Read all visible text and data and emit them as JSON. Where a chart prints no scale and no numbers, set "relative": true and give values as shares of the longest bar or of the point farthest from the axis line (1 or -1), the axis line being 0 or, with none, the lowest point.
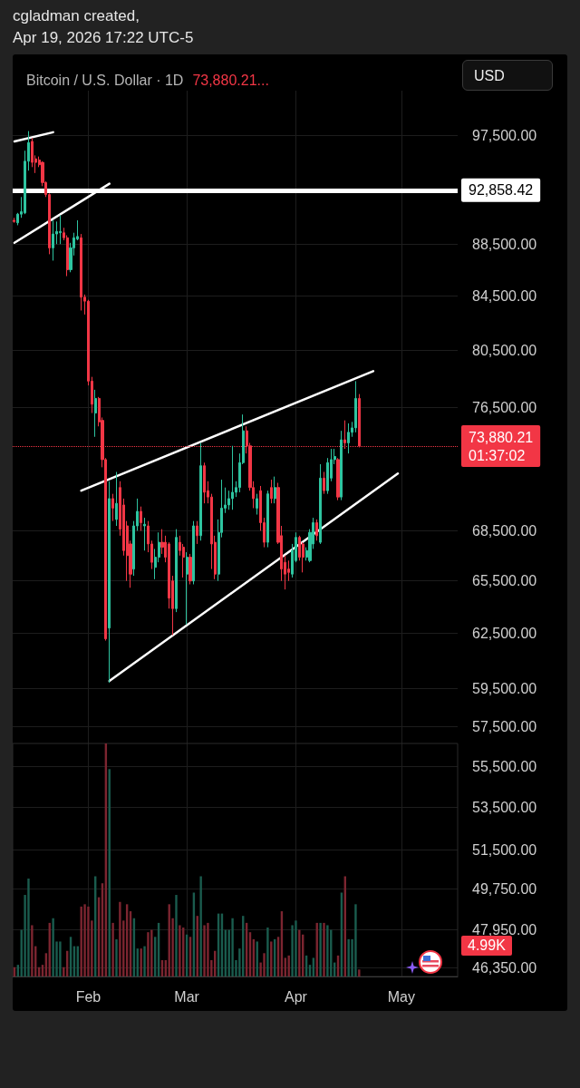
{
  "chart_data": [
    {
      "type": "candlestick",
      "title": "Bitcoin / U.S. Dollar · 1D",
      "subtitle": "73,880.21...",
      "annotations": [
        "cgladman created,",
        "Apr 19, 2026 17:22 UTC-5",
        "USD"
      ],
      "log": true,
      "grid": true,
      "marker": "none",
      "line_style": "solid",
      "tick_labels": "y",
      "ylim": [
        46000,
        101500
      ],
      "yticks": [
        {
          "value": 97500,
          "label": "97,500.00"
        },
        {
          "value": 88500,
          "label": "88,500.00"
        },
        {
          "value": 84500,
          "label": "84,500.00"
        },
        {
          "value": 80500,
          "label": "80,500.00"
        },
        {
          "value": 76500,
          "label": "76,500.00"
        },
        {
          "value": 68500,
          "label": "68,500.00"
        },
        {
          "value": 65500,
          "label": "65,500.00"
        },
        {
          "value": 62500,
          "label": "62,500.00"
        },
        {
          "value": 59500,
          "label": "59,500.00"
        },
        {
          "value": 57500,
          "label": "57,500.00"
        },
        {
          "value": 55500,
          "label": "55,500.00"
        },
        {
          "value": 53500,
          "label": "53,500.00"
        },
        {
          "value": 51500,
          "label": "51,500.00"
        },
        {
          "value": 49750,
          "label": "49,750.00"
        },
        {
          "value": 47950,
          "label": "47,950.00"
        },
        {
          "value": 46350,
          "label": "46,350.00"
        }
      ],
      "xlim": [
        "2026-01-10T12:00",
        "2026-05-17"
      ],
      "xticks": [
        {
          "value": "2026-02-01",
          "label": null
        },
        {
          "value": "2026-03-01",
          "label": null
        },
        {
          "value": "2026-04-01",
          "label": null
        },
        {
          "value": "2026-05-01",
          "label": null
        }
      ],
      "ref_lines": [
        {
          "axis": "y",
          "value": 92858.42,
          "label": "92,858.42",
          "color": "#ffffff",
          "line_style": "solid"
        },
        {
          "axis": "y",
          "value": 73880.21,
          "label": "73,880.21\n01:37:02",
          "color": "#f23645",
          "line_style": "dotted"
        }
      ],
      "x": [
        "2026-01-11",
        "2026-01-12",
        "2026-01-13",
        "2026-01-14",
        "2026-01-15",
        "2026-01-16",
        "2026-01-17",
        "2026-01-18",
        "2026-01-19",
        "2026-01-20",
        "2026-01-21",
        "2026-01-22",
        "2026-01-23",
        "2026-01-24",
        "2026-01-25",
        "2026-01-26",
        "2026-01-27",
        "2026-01-28",
        "2026-01-29",
        "2026-01-30",
        "2026-01-31",
        "2026-02-01",
        "2026-02-02",
        "2026-02-03",
        "2026-02-04",
        "2026-02-05",
        "2026-02-06",
        "2026-02-07",
        "2026-02-08",
        "2026-02-09",
        "2026-02-10",
        "2026-02-11",
        "2026-02-12",
        "2026-02-13",
        "2026-02-14",
        "2026-02-15",
        "2026-02-16",
        "2026-02-17",
        "2026-02-18",
        "2026-02-19",
        "2026-02-20",
        "2026-02-21",
        "2026-02-22",
        "2026-02-23",
        "2026-02-24",
        "2026-02-25",
        "2026-02-26",
        "2026-02-27",
        "2026-02-28",
        "2026-03-01",
        "2026-03-02",
        "2026-03-03",
        "2026-03-04",
        "2026-03-05",
        "2026-03-06",
        "2026-03-07",
        "2026-03-08",
        "2026-03-09",
        "2026-03-10",
        "2026-03-11",
        "2026-03-12",
        "2026-03-13",
        "2026-03-14",
        "2026-03-15",
        "2026-03-16",
        "2026-03-17",
        "2026-03-18",
        "2026-03-19",
        "2026-03-20",
        "2026-03-21",
        "2026-03-22",
        "2026-03-23",
        "2026-03-24",
        "2026-03-25",
        "2026-03-26",
        "2026-03-27",
        "2026-03-28",
        "2026-03-29",
        "2026-03-30",
        "2026-03-31",
        "2026-04-01",
        "2026-04-02",
        "2026-04-03",
        "2026-04-04",
        "2026-04-05",
        "2026-04-06",
        "2026-04-07",
        "2026-04-08",
        "2026-04-09",
        "2026-04-10",
        "2026-04-11",
        "2026-04-12",
        "2026-04-13",
        "2026-04-14",
        "2026-04-15",
        "2026-04-16",
        "2026-04-17",
        "2026-04-18",
        "2026-04-19"
      ],
      "series": [
        {
          "type": "candlestick",
          "ohlc": [
            [
              90400,
              90600,
              90200,
              90300
            ],
            [
              90200,
              91000,
              90000,
              90900
            ],
            [
              90900,
              92300,
              90600,
              91100
            ],
            [
              91000,
              96200,
              90900,
              95300
            ],
            [
              95300,
              97900,
              94500,
              96900
            ],
            [
              97000,
              97300,
              94800,
              95200
            ],
            [
              95500,
              95800,
              94300,
              95200
            ],
            [
              95400,
              95700,
              94800,
              95000
            ],
            [
              95200,
              95300,
              93200,
              93500
            ],
            [
              93500,
              93600,
              92300,
              92500
            ],
            [
              92500,
              92600,
              87700,
              88200
            ],
            [
              88200,
              90400,
              87200,
              89300
            ],
            [
              89300,
              90300,
              88500,
              89500
            ],
            [
              89400,
              90800,
              88500,
              89500
            ],
            [
              89400,
              89800,
              88800,
              89000
            ],
            [
              89000,
              89200,
              86000,
              86500
            ],
            [
              86500,
              88600,
              86300,
              88200
            ],
            [
              88200,
              89400,
              87600,
              89000
            ],
            [
              88900,
              90400,
              88800,
              89100
            ],
            [
              89000,
              89300,
              83400,
              84400
            ],
            [
              84400,
              84600,
              83100,
              84100
            ],
            [
              84100,
              84200,
              78000,
              78300
            ],
            [
              78300,
              78600,
              76100,
              76700
            ],
            [
              76100,
              77700,
              74500,
              77100
            ],
            [
              77100,
              77200,
              75200,
              75500
            ],
            [
              75600,
              75800,
              72500,
              73000
            ],
            [
              73000,
              73100,
              62100,
              62200
            ],
            [
              62800,
              71600,
              59800,
              70500
            ],
            [
              70500,
              70800,
              69100,
              69900
            ],
            [
              69200,
              72200,
              68800,
              70200
            ],
            [
              71200,
              71600,
              68200,
              68600
            ],
            [
              70100,
              70500,
              67000,
              67300
            ],
            [
              68800,
              69100,
              65500,
              67000
            ],
            [
              67700,
              67900,
              65100,
              65900
            ],
            [
              66200,
              69100,
              65800,
              68800
            ],
            [
              68800,
              70500,
              68500,
              69700
            ],
            [
              69700,
              70000,
              68500,
              69000
            ],
            [
              68800,
              69300,
              67300,
              68900
            ],
            [
              68800,
              69100,
              67200,
              67700
            ],
            [
              67700,
              67900,
              66200,
              66600
            ],
            [
              66300,
              67400,
              65600,
              66900
            ],
            [
              66900,
              68400,
              66600,
              67800
            ],
            [
              67800,
              68600,
              67100,
              67500
            ],
            [
              67800,
              68200,
              66600,
              66900
            ],
            [
              67700,
              67800,
              63900,
              64500
            ],
            [
              65500,
              65800,
              62400,
              63900
            ],
            [
              63900,
              68600,
              63700,
              68100
            ],
            [
              67800,
              68200,
              67000,
              67300
            ],
            [
              67500,
              67700,
              65700,
              66900
            ],
            [
              65900,
              67200,
              63000,
              66900
            ],
            [
              66900,
              67100,
              65300,
              65500
            ],
            [
              65500,
              69100,
              65300,
              68800
            ],
            [
              68800,
              69100,
              67700,
              68200
            ],
            [
              68200,
              74100,
              67900,
              72600
            ],
            [
              72600,
              72800,
              70200,
              70900
            ],
            [
              71000,
              71600,
              70200,
              70600
            ],
            [
              70600,
              70800,
              66200,
              67700
            ],
            [
              67800,
              68200,
              65600,
              65900
            ],
            [
              65900,
              69200,
              65500,
              68400
            ],
            [
              68400,
              71700,
              68100,
              69900
            ],
            [
              69900,
              71200,
              69600,
              70100
            ],
            [
              70100,
              71000,
              69800,
              70500
            ],
            [
              70500,
              73900,
              69800,
              70900
            ],
            [
              70900,
              71600,
              70600,
              71200
            ],
            [
              71200,
              73400,
              70900,
              72800
            ],
            [
              72800,
              76000,
              72700,
              74900
            ],
            [
              74900,
              75200,
              73400,
              73900
            ],
            [
              73900,
              74100,
              71000,
              71200
            ],
            [
              71200,
              71600,
              69900,
              70500
            ],
            [
              69900,
              70800,
              69500,
              70500
            ],
            [
              71000,
              71300,
              68500,
              69000
            ],
            [
              69000,
              69300,
              67500,
              67800
            ],
            [
              67800,
              71000,
              67500,
              70800
            ],
            [
              71200,
              71700,
              70200,
              70500
            ],
            [
              70500,
              71900,
              70200,
              71200
            ],
            [
              71200,
              71500,
              67700,
              67800
            ],
            [
              68200,
              68800,
              65500,
              66200
            ],
            [
              66600,
              67000,
              65000,
              65900
            ],
            [
              66200,
              66700,
              65500,
              66000
            ],
            [
              65900,
              67700,
              65700,
              67300
            ],
            [
              66700,
              68400,
              66600,
              68100
            ],
            [
              68100,
              68200,
              66700,
              66900
            ],
            [
              67700,
              67800,
              66000,
              66900
            ],
            [
              66900,
              67500,
              66700,
              67300
            ],
            [
              66700,
              68600,
              66600,
              68400
            ],
            [
              67700,
              69300,
              67400,
              69000
            ],
            [
              69000,
              69200,
              67900,
              68200
            ],
            [
              67800,
              72700,
              67700,
              71800
            ],
            [
              71800,
              72200,
              70800,
              71000
            ],
            [
              71000,
              73100,
              70800,
              72800
            ],
            [
              71800,
              73700,
              71600,
              73000
            ],
            [
              73000,
              73700,
              72700,
              73200
            ],
            [
              73000,
              73100,
              70400,
              70600
            ],
            [
              70600,
              74900,
              70400,
              74300
            ],
            [
              74300,
              75600,
              73700,
              74100
            ],
            [
              74100,
              75400,
              73400,
              74800
            ],
            [
              74800,
              75500,
              74500,
              75100
            ],
            [
              75100,
              78300,
              74800,
              77100
            ],
            [
              77100,
              77400,
              73800,
              73880.21
            ]
          ],
          "colors": [
            "#f23645",
            "#2ec4a0",
            "#2ec4a0",
            "#2ec4a0",
            "#2ec4a0",
            "#f23645",
            "#f23645",
            "#f23645",
            "#f23645",
            "#f23645",
            "#f23645",
            "#2ec4a0",
            "#2ec4a0",
            "#2ec4a0",
            "#f23645",
            "#f23645",
            "#2ec4a0",
            "#2ec4a0",
            "#2ec4a0",
            "#f23645",
            "#f23645",
            "#f23645",
            "#f23645",
            "#2ec4a0",
            "#f23645",
            "#f23645",
            "#f23645",
            "#2ec4a0",
            "#f23645",
            "#2ec4a0",
            "#f23645",
            "#f23645",
            "#f23645",
            "#f23645",
            "#2ec4a0",
            "#2ec4a0",
            "#f23645",
            "#2ec4a0",
            "#f23645",
            "#f23645",
            "#2ec4a0",
            "#2ec4a0",
            "#f23645",
            "#f23645",
            "#f23645",
            "#f23645",
            "#2ec4a0",
            "#f23645",
            "#f23645",
            "#2ec4a0",
            "#f23645",
            "#2ec4a0",
            "#f23645",
            "#2ec4a0",
            "#f23645",
            "#f23645",
            "#f23645",
            "#f23645",
            "#2ec4a0",
            "#2ec4a0",
            "#2ec4a0",
            "#2ec4a0",
            "#2ec4a0",
            "#2ec4a0",
            "#2ec4a0",
            "#2ec4a0",
            "#f23645",
            "#f23645",
            "#f23645",
            "#2ec4a0",
            "#f23645",
            "#f23645",
            "#2ec4a0",
            "#f23645",
            "#2ec4a0",
            "#f23645",
            "#f23645",
            "#f23645",
            "#f23645",
            "#2ec4a0",
            "#2ec4a0",
            "#f23645",
            "#f23645",
            "#2ec4a0",
            "#2ec4a0",
            "#2ec4a0",
            "#f23645",
            "#2ec4a0",
            "#f23645",
            "#2ec4a0",
            "#2ec4a0",
            "#2ec4a0",
            "#f23645",
            "#2ec4a0",
            "#f23645",
            "#2ec4a0",
            "#2ec4a0",
            "#2ec4a0",
            "#f23645"
          ]
        },
        {
          "type": "line",
          "color": "#ffffff",
          "x": [
            "2026-01-11",
            "2026-01-22"
          ],
          "values": [
            97000,
            97800
          ]
        },
        {
          "type": "line",
          "color": "#ffffff",
          "x": [
            "2026-01-11",
            "2026-02-07"
          ],
          "values": [
            88600,
            93400
          ]
        },
        {
          "type": "line",
          "color": "#ffffff",
          "x": [
            "2026-01-30",
            "2026-04-23"
          ],
          "values": [
            71000,
            79000
          ]
        },
        {
          "type": "line",
          "color": "#ffffff",
          "x": [
            "2026-02-07",
            "2026-04-30"
          ],
          "values": [
            59900,
            72100
          ]
        }
      ]
    },
    {
      "type": "bar",
      "relative": true,
      "tick_labels": "x",
      "annotations": [
        "4.99K"
      ],
      "xlim": [
        "2026-01-10T12:00",
        "2026-05-17"
      ],
      "xticks": [
        {
          "value": "2026-02-01",
          "label": "Feb"
        },
        {
          "value": "2026-03-01",
          "label": "Mar"
        },
        {
          "value": "2026-04-01",
          "label": "Apr"
        },
        {
          "value": "2026-05-01",
          "label": "May"
        }
      ],
      "x": [
        "2026-01-11",
        "2026-01-12",
        "2026-01-13",
        "2026-01-14",
        "2026-01-15",
        "2026-01-16",
        "2026-01-17",
        "2026-01-18",
        "2026-01-19",
        "2026-01-20",
        "2026-01-21",
        "2026-01-22",
        "2026-01-23",
        "2026-01-24",
        "2026-01-25",
        "2026-01-26",
        "2026-01-27",
        "2026-01-28",
        "2026-01-29",
        "2026-01-30",
        "2026-01-31",
        "2026-02-01",
        "2026-02-02",
        "2026-02-03",
        "2026-02-04",
        "2026-02-05",
        "2026-02-06",
        "2026-02-07",
        "2026-02-08",
        "2026-02-09",
        "2026-02-10",
        "2026-02-11",
        "2026-02-12",
        "2026-02-13",
        "2026-02-14",
        "2026-02-15",
        "2026-02-16",
        "2026-02-17",
        "2026-02-18",
        "2026-02-19",
        "2026-02-20",
        "2026-02-21",
        "2026-02-22",
        "2026-02-23",
        "2026-02-24",
        "2026-02-25",
        "2026-02-26",
        "2026-02-27",
        "2026-02-28",
        "2026-03-01",
        "2026-03-02",
        "2026-03-03",
        "2026-03-04",
        "2026-03-05",
        "2026-03-06",
        "2026-03-07",
        "2026-03-08",
        "2026-03-09",
        "2026-03-10",
        "2026-03-11",
        "2026-03-12",
        "2026-03-13",
        "2026-03-14",
        "2026-03-15",
        "2026-03-16",
        "2026-03-17",
        "2026-03-18",
        "2026-03-19",
        "2026-03-20",
        "2026-03-21",
        "2026-03-22",
        "2026-03-23",
        "2026-03-24",
        "2026-03-25",
        "2026-03-26",
        "2026-03-27",
        "2026-03-28",
        "2026-03-29",
        "2026-03-30",
        "2026-03-31",
        "2026-04-01",
        "2026-04-02",
        "2026-04-03",
        "2026-04-04",
        "2026-04-05",
        "2026-04-06",
        "2026-04-07",
        "2026-04-08",
        "2026-04-09",
        "2026-04-10",
        "2026-04-11",
        "2026-04-12",
        "2026-04-13",
        "2026-04-14",
        "2026-04-15",
        "2026-04-16",
        "2026-04-17",
        "2026-04-18",
        "2026-04-19"
      ],
      "values": [
        0.04,
        0.05,
        0.2,
        0.35,
        0.42,
        0.22,
        0.13,
        0.04,
        0.05,
        0.1,
        0.23,
        0.25,
        0.15,
        0.15,
        0.04,
        0.11,
        0.17,
        0.13,
        0.13,
        0.3,
        0.31,
        0.3,
        0.24,
        0.43,
        0.34,
        0.4,
        1,
        0.89,
        0.23,
        0.16,
        0.32,
        0.24,
        0.31,
        0.28,
        0.25,
        0.12,
        0.12,
        0.13,
        0.19,
        0.2,
        0.17,
        0.23,
        0.07,
        0.07,
        0.31,
        0.25,
        0.35,
        0.22,
        0.21,
        0.18,
        0.17,
        0.36,
        0.26,
        0.43,
        0.22,
        0.23,
        0.07,
        0.11,
        0.27,
        0.27,
        0.2,
        0.2,
        0.25,
        0.07,
        0.12,
        0.26,
        0.23,
        0.19,
        0.16,
        0.15,
        0.06,
        0.1,
        0.21,
        0.15,
        0.16,
        0.17,
        0.28,
        0.08,
        0.09,
        0.22,
        0.24,
        0.2,
        0.18,
        0.09,
        0.05,
        0.08,
        0.23,
        0.23,
        0.23,
        0.22,
        0.2,
        0.06,
        0.09,
        0.36,
        0.43,
        0.16,
        0.16,
        0.31,
        0.03
      ],
      "colors": [
        "#7c2530",
        "#1a5c4e",
        "#1a5c4e",
        "#1a5c4e",
        "#1a5c4e",
        "#7c2530",
        "#7c2530",
        "#7c2530",
        "#7c2530",
        "#7c2530",
        "#7c2530",
        "#1a5c4e",
        "#1a5c4e",
        "#1a5c4e",
        "#7c2530",
        "#7c2530",
        "#1a5c4e",
        "#1a5c4e",
        "#1a5c4e",
        "#7c2530",
        "#7c2530",
        "#7c2530",
        "#7c2530",
        "#1a5c4e",
        "#7c2530",
        "#7c2530",
        "#7c2530",
        "#1a5c4e",
        "#7c2530",
        "#1a5c4e",
        "#7c2530",
        "#7c2530",
        "#7c2530",
        "#7c2530",
        "#1a5c4e",
        "#1a5c4e",
        "#7c2530",
        "#1a5c4e",
        "#7c2530",
        "#7c2530",
        "#1a5c4e",
        "#1a5c4e",
        "#7c2530",
        "#7c2530",
        "#7c2530",
        "#7c2530",
        "#1a5c4e",
        "#7c2530",
        "#7c2530",
        "#1a5c4e",
        "#7c2530",
        "#1a5c4e",
        "#7c2530",
        "#1a5c4e",
        "#7c2530",
        "#7c2530",
        "#7c2530",
        "#7c2530",
        "#1a5c4e",
        "#1a5c4e",
        "#1a5c4e",
        "#1a5c4e",
        "#1a5c4e",
        "#1a5c4e",
        "#1a5c4e",
        "#1a5c4e",
        "#7c2530",
        "#7c2530",
        "#7c2530",
        "#1a5c4e",
        "#7c2530",
        "#7c2530",
        "#1a5c4e",
        "#7c2530",
        "#1a5c4e",
        "#7c2530",
        "#7c2530",
        "#7c2530",
        "#7c2530",
        "#1a5c4e",
        "#1a5c4e",
        "#7c2530",
        "#7c2530",
        "#1a5c4e",
        "#1a5c4e",
        "#1a5c4e",
        "#7c2530",
        "#1a5c4e",
        "#7c2530",
        "#1a5c4e",
        "#1a5c4e",
        "#1a5c4e",
        "#7c2530",
        "#1a5c4e",
        "#7c2530",
        "#1a5c4e",
        "#1a5c4e",
        "#1a5c4e",
        "#7c2530"
      ]
    }
  ]
}
